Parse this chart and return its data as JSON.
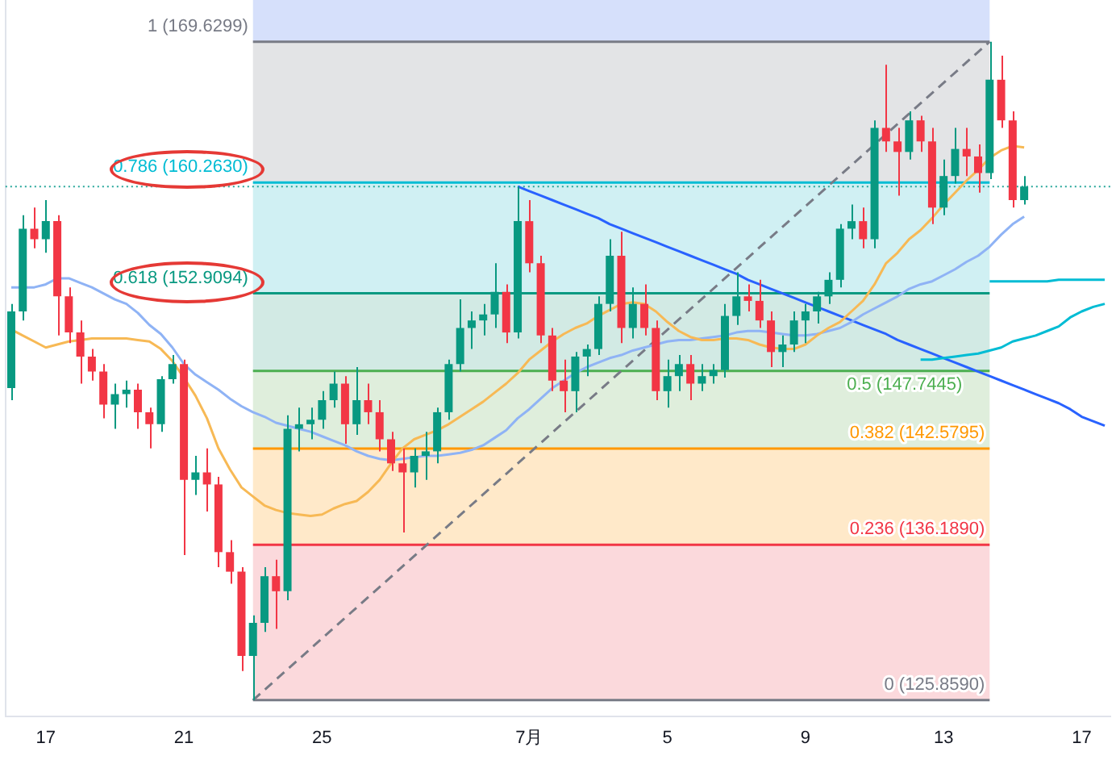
{
  "chart_data": {
    "type": "candlestick",
    "categories": [
      null,
      null,
      null,
      "17",
      null,
      null,
      null,
      null,
      null,
      null,
      null,
      null,
      null,
      null,
      null,
      "21",
      null,
      null,
      null,
      null,
      null,
      null,
      null,
      null,
      null,
      null,
      null,
      "25",
      null,
      null,
      null,
      null,
      null,
      null,
      null,
      null,
      null,
      null,
      null,
      null,
      null,
      null,
      null,
      null,
      null,
      "7月",
      null,
      null,
      null,
      null,
      null,
      null,
      null,
      null,
      null,
      null,
      null,
      "5",
      null,
      null,
      null,
      null,
      null,
      null,
      null,
      null,
      null,
      null,
      null,
      "9",
      null,
      null,
      null,
      null,
      null,
      null,
      null,
      null,
      null,
      null,
      null,
      "13",
      null,
      null,
      null,
      null,
      null,
      null,
      null,
      null,
      null,
      null,
      null,
      "17",
      null,
      null
    ],
    "ohlc": [
      [
        146.6,
        152.2,
        145.8,
        151.7
      ],
      [
        151.7,
        158.1,
        151.1,
        157.2
      ],
      [
        157.2,
        158.6,
        155.9,
        156.5
      ],
      [
        156.5,
        159.1,
        155.6,
        157.7
      ],
      [
        157.7,
        158.1,
        150.1,
        152.7
      ],
      [
        152.7,
        153.3,
        149.6,
        150.3
      ],
      [
        150.3,
        151.1,
        146.9,
        148.7
      ],
      [
        148.7,
        149.2,
        147.1,
        147.7
      ],
      [
        147.7,
        148.2,
        144.6,
        145.5
      ],
      [
        145.5,
        146.9,
        143.9,
        146.2
      ],
      [
        146.2,
        147.1,
        145.3,
        146.5
      ],
      [
        146.5,
        146.9,
        143.9,
        145.0
      ],
      [
        145.0,
        145.3,
        142.6,
        144.2
      ],
      [
        144.2,
        147.4,
        143.7,
        147.2
      ],
      [
        147.2,
        148.8,
        146.9,
        148.2
      ],
      [
        148.2,
        148.5,
        135.5,
        140.5
      ],
      [
        140.5,
        142.1,
        139.5,
        141.0
      ],
      [
        141.0,
        142.6,
        138.4,
        140.2
      ],
      [
        140.2,
        140.7,
        134.7,
        135.7
      ],
      [
        135.7,
        136.5,
        133.6,
        134.4
      ],
      [
        134.4,
        134.7,
        127.8,
        128.8
      ],
      [
        128.8,
        131.5,
        125.859,
        131.0
      ],
      [
        131.0,
        134.7,
        130.4,
        134.1
      ],
      [
        134.1,
        135.2,
        130.6,
        133.1
      ],
      [
        133.1,
        144.8,
        132.5,
        143.9
      ],
      [
        143.9,
        145.3,
        142.4,
        144.2
      ],
      [
        144.2,
        145.3,
        143.2,
        144.5
      ],
      [
        144.5,
        146.4,
        143.9,
        145.8
      ],
      [
        145.8,
        147.7,
        145.3,
        146.9
      ],
      [
        146.9,
        147.4,
        142.9,
        144.2
      ],
      [
        144.2,
        148.0,
        143.5,
        145.8
      ],
      [
        145.8,
        146.9,
        144.2,
        145.0
      ],
      [
        145.0,
        145.8,
        142.4,
        143.2
      ],
      [
        143.2,
        143.7,
        141.1,
        141.6
      ],
      [
        141.6,
        142.6,
        137.0,
        141.0
      ],
      [
        141.0,
        142.6,
        140.0,
        142.1
      ],
      [
        142.1,
        143.7,
        140.5,
        142.4
      ],
      [
        142.4,
        145.3,
        141.6,
        145.0
      ],
      [
        145.0,
        148.5,
        144.5,
        148.2
      ],
      [
        148.2,
        152.5,
        147.7,
        150.6
      ],
      [
        150.6,
        151.7,
        149.2,
        151.1
      ],
      [
        151.1,
        152.2,
        150.1,
        151.5
      ],
      [
        151.5,
        154.9,
        150.6,
        153.0
      ],
      [
        153.0,
        153.5,
        149.6,
        150.3
      ],
      [
        150.3,
        160.0,
        149.9,
        157.7
      ],
      [
        157.7,
        159.1,
        154.3,
        154.9
      ],
      [
        154.9,
        155.4,
        149.6,
        150.1
      ],
      [
        150.1,
        150.6,
        146.4,
        147.1
      ],
      [
        147.1,
        148.5,
        145.0,
        146.4
      ],
      [
        146.4,
        149.0,
        145.0,
        148.7
      ],
      [
        148.7,
        149.5,
        147.4,
        149.2
      ],
      [
        149.2,
        152.7,
        148.8,
        152.2
      ],
      [
        152.2,
        156.5,
        151.7,
        155.4
      ],
      [
        155.4,
        157.0,
        149.6,
        150.6
      ],
      [
        150.6,
        153.3,
        149.9,
        152.2
      ],
      [
        152.2,
        153.5,
        150.1,
        150.6
      ],
      [
        150.6,
        151.1,
        145.8,
        146.4
      ],
      [
        146.4,
        148.5,
        145.3,
        147.4
      ],
      [
        147.4,
        148.8,
        146.4,
        148.2
      ],
      [
        148.2,
        148.8,
        145.8,
        146.9
      ],
      [
        146.9,
        148.2,
        146.4,
        147.4
      ],
      [
        147.4,
        148.2,
        146.9,
        147.8
      ],
      [
        147.8,
        152.2,
        147.3,
        151.4
      ],
      [
        151.4,
        154.3,
        150.8,
        152.7
      ],
      [
        152.7,
        153.5,
        151.7,
        152.4
      ],
      [
        152.4,
        153.8,
        150.6,
        151.1
      ],
      [
        151.1,
        151.7,
        148.0,
        149.0
      ],
      [
        149.0,
        150.1,
        148.0,
        149.5
      ],
      [
        149.5,
        151.7,
        149.0,
        151.1
      ],
      [
        151.1,
        152.2,
        149.6,
        151.7
      ],
      [
        151.7,
        153.0,
        150.9,
        152.7
      ],
      [
        152.7,
        154.3,
        152.2,
        153.8
      ],
      [
        153.8,
        157.5,
        153.3,
        157.2
      ],
      [
        157.2,
        158.8,
        156.5,
        157.7
      ],
      [
        157.7,
        158.6,
        155.9,
        156.5
      ],
      [
        156.5,
        164.4,
        155.9,
        163.9
      ],
      [
        163.9,
        168.1,
        162.3,
        163.0
      ],
      [
        163.0,
        163.9,
        159.4,
        162.3
      ],
      [
        162.3,
        165.0,
        161.8,
        164.4
      ],
      [
        164.4,
        164.7,
        162.3,
        163.0
      ],
      [
        163.0,
        163.9,
        157.5,
        158.6
      ],
      [
        158.6,
        161.8,
        158.1,
        160.7
      ],
      [
        160.7,
        163.9,
        160.2,
        162.5
      ],
      [
        162.5,
        163.9,
        160.7,
        162.0
      ],
      [
        162.0,
        162.8,
        159.6,
        160.9
      ],
      [
        160.9,
        169.6299,
        160.5,
        167.1
      ],
      [
        167.1,
        168.7,
        163.9,
        164.4
      ],
      [
        164.4,
        165.0,
        158.6,
        159.1
      ],
      [
        159.1,
        160.7,
        158.8,
        160.0
      ],
      null,
      null,
      null,
      null,
      null,
      null,
      null
    ],
    "series": [
      {
        "type": "line",
        "color": "#f7b955",
        "values": [
          150.5,
          150.1,
          149.7,
          149.3,
          149.5,
          149.7,
          149.8,
          149.9,
          149.9,
          149.9,
          149.9,
          149.8,
          149.7,
          149.2,
          148.4,
          147.3,
          146.1,
          144.6,
          142.6,
          141.2,
          140.0,
          139.4,
          138.8,
          138.5,
          138.3,
          138.2,
          138.1,
          138.2,
          138.6,
          138.9,
          139.1,
          139.7,
          140.5,
          141.6,
          142.6,
          143.2,
          143.5,
          143.8,
          144.2,
          144.7,
          145.2,
          145.7,
          146.3,
          146.9,
          147.6,
          148.5,
          149.1,
          149.7,
          150.2,
          150.6,
          150.9,
          151.4,
          151.8,
          152.2,
          152.3,
          152.2,
          151.7,
          151.0,
          150.4,
          150.0,
          149.8,
          149.8,
          149.9,
          149.9,
          149.8,
          149.5,
          149.3,
          149.2,
          149.2,
          149.5,
          150.1,
          150.6,
          151.0,
          151.7,
          152.4,
          153.5,
          154.9,
          155.6,
          156.5,
          157.1,
          157.9,
          158.8,
          159.6,
          160.4,
          161.1,
          161.9,
          162.4,
          162.7,
          162.6,
          null,
          null,
          null,
          null,
          null,
          null,
          null
        ]
      },
      {
        "type": "line",
        "color": "#8fb3f5",
        "values": [
          153.3,
          153.3,
          153.3,
          153.5,
          153.9,
          153.9,
          153.6,
          153.3,
          152.9,
          152.5,
          152.2,
          151.6,
          150.8,
          150.2,
          149.3,
          148.2,
          147.5,
          147.0,
          146.5,
          145.9,
          145.4,
          145.0,
          144.7,
          144.3,
          144.1,
          143.9,
          143.7,
          143.4,
          143.1,
          142.8,
          142.4,
          142.1,
          141.9,
          141.8,
          141.9,
          142.0,
          142.1,
          142.1,
          142.2,
          142.3,
          142.5,
          142.8,
          143.3,
          143.8,
          144.6,
          145.2,
          145.9,
          146.6,
          147.1,
          147.6,
          148.0,
          148.3,
          148.6,
          148.8,
          149.1,
          149.3,
          149.5,
          149.7,
          149.8,
          149.8,
          149.9,
          150.0,
          150.1,
          150.3,
          150.4,
          150.4,
          150.3,
          150.2,
          150.1,
          150.1,
          150.2,
          150.4,
          150.6,
          151.0,
          151.5,
          151.9,
          152.3,
          152.7,
          153.2,
          153.5,
          153.7,
          154.1,
          154.5,
          155.0,
          155.4,
          156.0,
          156.8,
          157.5,
          158.0,
          null,
          null,
          null,
          null,
          null,
          null,
          null
        ]
      },
      {
        "type": "line",
        "color": "#00bcd4",
        "values": [
          null,
          null,
          null,
          null,
          null,
          null,
          null,
          null,
          null,
          null,
          null,
          null,
          null,
          null,
          null,
          null,
          null,
          null,
          null,
          null,
          null,
          null,
          null,
          null,
          null,
          null,
          null,
          null,
          null,
          null,
          null,
          null,
          null,
          null,
          null,
          null,
          null,
          null,
          null,
          null,
          null,
          null,
          null,
          null,
          null,
          null,
          null,
          null,
          null,
          null,
          null,
          null,
          null,
          null,
          null,
          null,
          null,
          null,
          null,
          null,
          null,
          null,
          null,
          null,
          null,
          null,
          null,
          null,
          null,
          null,
          null,
          null,
          null,
          null,
          null,
          null,
          null,
          null,
          null,
          null,
          null,
          null,
          null,
          null,
          null,
          153.7,
          153.7,
          153.7,
          153.7,
          153.7,
          153.7,
          153.8,
          153.8,
          153.8,
          153.8,
          153.8
        ]
      },
      {
        "type": "line",
        "color": "#00bcd4",
        "values": [
          null,
          null,
          null,
          null,
          null,
          null,
          null,
          null,
          null,
          null,
          null,
          null,
          null,
          null,
          null,
          null,
          null,
          null,
          null,
          null,
          null,
          null,
          null,
          null,
          null,
          null,
          null,
          null,
          null,
          null,
          null,
          null,
          null,
          null,
          null,
          null,
          null,
          null,
          null,
          null,
          null,
          null,
          null,
          null,
          null,
          null,
          null,
          null,
          null,
          null,
          null,
          null,
          null,
          null,
          null,
          null,
          null,
          null,
          null,
          null,
          null,
          null,
          null,
          null,
          null,
          null,
          null,
          null,
          null,
          null,
          null,
          null,
          null,
          null,
          null,
          null,
          null,
          null,
          null,
          148.5,
          148.5,
          148.6,
          148.7,
          148.8,
          148.9,
          149.1,
          149.3,
          149.7,
          149.9,
          150.1,
          150.4,
          150.7,
          151.3,
          151.7,
          152.0,
          152.2
        ]
      },
      {
        "type": "line",
        "color": "#2962ff",
        "values": [
          null,
          null,
          null,
          null,
          null,
          null,
          null,
          null,
          null,
          null,
          null,
          null,
          null,
          null,
          null,
          null,
          null,
          null,
          null,
          null,
          null,
          null,
          null,
          null,
          null,
          null,
          null,
          null,
          null,
          null,
          null,
          null,
          null,
          null,
          null,
          null,
          null,
          null,
          null,
          null,
          null,
          null,
          null,
          null,
          160.0,
          159.7,
          159.4,
          159.1,
          158.8,
          158.5,
          158.2,
          157.9,
          157.5,
          157.2,
          156.9,
          156.6,
          156.3,
          156.0,
          155.7,
          155.4,
          155.1,
          154.8,
          154.5,
          154.2,
          153.8,
          153.5,
          153.2,
          152.9,
          152.6,
          152.3,
          152.0,
          151.7,
          151.4,
          151.1,
          150.8,
          150.5,
          150.2,
          149.8,
          149.5,
          149.2,
          148.9,
          148.6,
          148.3,
          148.0,
          147.7,
          147.4,
          147.1,
          146.8,
          146.5,
          146.2,
          145.9,
          145.6,
          145.2,
          144.7,
          144.4,
          144.1
        ]
      },
      {
        "type": "line",
        "color": "#787b86",
        "line_style": "dashed",
        "values": [
          null,
          null,
          null,
          null,
          null,
          null,
          null,
          null,
          null,
          null,
          null,
          null,
          null,
          null,
          null,
          null,
          null,
          null,
          null,
          null,
          null,
          125.859,
          null,
          null,
          null,
          null,
          null,
          null,
          null,
          null,
          null,
          null,
          null,
          null,
          null,
          null,
          null,
          null,
          null,
          null,
          null,
          null,
          null,
          null,
          null,
          null,
          null,
          null,
          null,
          null,
          null,
          null,
          null,
          null,
          null,
          null,
          null,
          null,
          null,
          null,
          null,
          null,
          null,
          null,
          null,
          null,
          null,
          null,
          null,
          null,
          null,
          null,
          null,
          null,
          null,
          null,
          null,
          null,
          null,
          null,
          null,
          null,
          null,
          null,
          null,
          169.6299,
          null,
          null,
          null,
          null,
          null,
          null,
          null,
          null,
          null,
          null
        ]
      }
    ],
    "bands": [
      {
        "axis": "y",
        "from": 169.6299,
        "to": 172.4,
        "color": "#d6e0fb"
      },
      {
        "axis": "y",
        "from": 160.263,
        "to": 169.6299,
        "color": "#e3e4e6"
      },
      {
        "axis": "y",
        "from": 152.9094,
        "to": 160.263,
        "color": "#d0f0f3"
      },
      {
        "axis": "y",
        "from": 147.7445,
        "to": 152.9094,
        "color": "#d2eae4"
      },
      {
        "axis": "y",
        "from": 142.5795,
        "to": 147.7445,
        "color": "#dfeedc"
      },
      {
        "axis": "y",
        "from": 136.189,
        "to": 142.5795,
        "color": "#ffe9c9"
      },
      {
        "axis": "y",
        "from": 125.859,
        "to": 136.189,
        "color": "#fbd9dc"
      }
    ],
    "ref_lines": [
      {
        "axis": "y",
        "value": 169.6299,
        "label": "1 (169.6299)",
        "color": "#787b86"
      },
      {
        "axis": "y",
        "value": 160.263,
        "label": "0.786 (160.2630)",
        "color": "#00bcd4"
      },
      {
        "axis": "y",
        "value": 152.9094,
        "label": "0.618 (152.9094)",
        "color": "#089981"
      },
      {
        "axis": "y",
        "value": 147.7445,
        "label": "0.5 (147.7445)",
        "color": "#4caf50"
      },
      {
        "axis": "y",
        "value": 142.5795,
        "label": "0.382 (142.5795)",
        "color": "#ff9800"
      },
      {
        "axis": "y",
        "value": 136.189,
        "label": "0.236 (136.1890)",
        "color": "#f23645"
      },
      {
        "axis": "y",
        "value": 125.859,
        "label": "0 (125.8590)",
        "color": "#787b86"
      },
      {
        "axis": "y",
        "value": 160.0,
        "color": "#26a69a",
        "line_style": "dotted"
      }
    ],
    "ylim": [
      124.8,
      172.4
    ],
    "tick_labels": "x",
    "legend": false,
    "grid": false
  }
}
